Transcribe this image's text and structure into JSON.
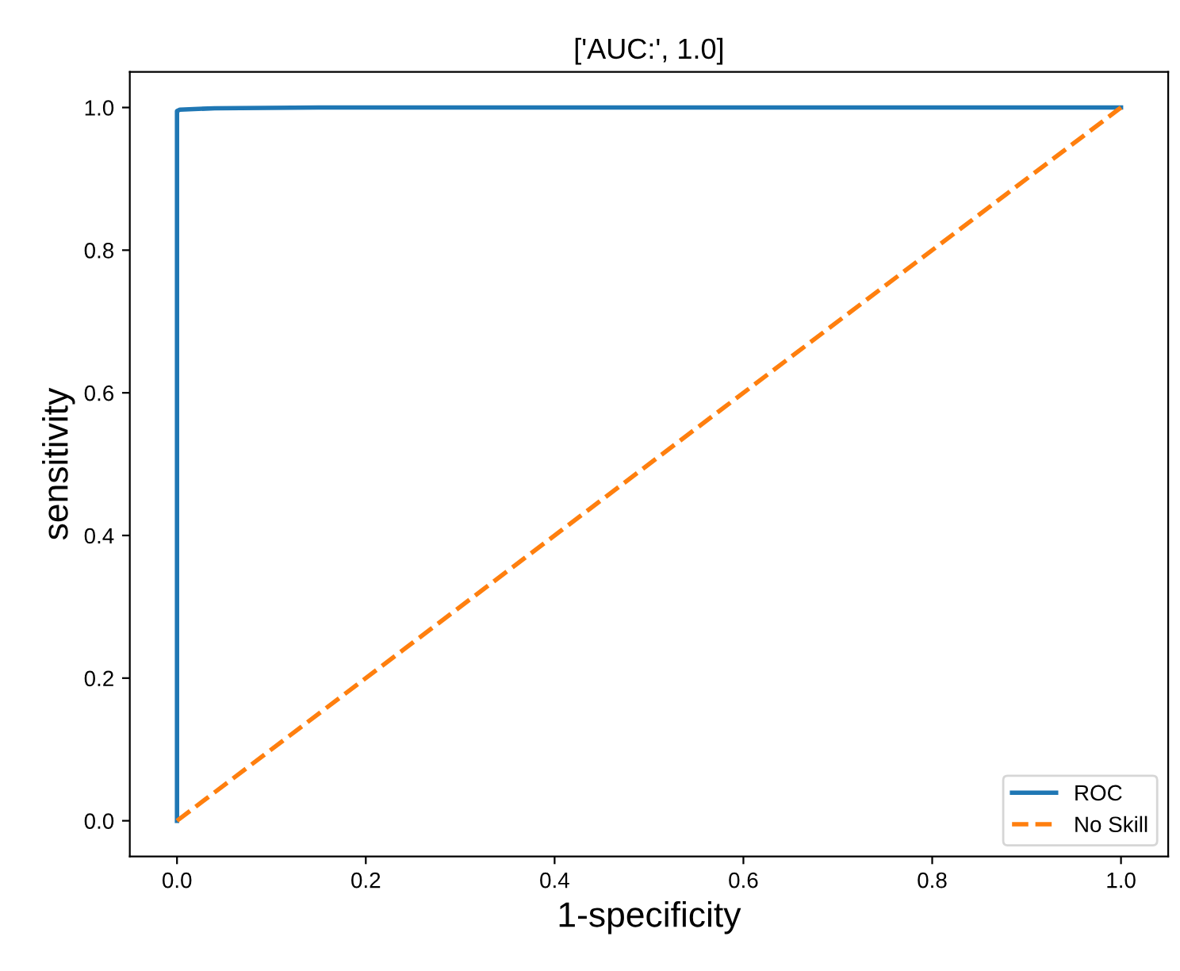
{
  "chart_data": {
    "type": "line",
    "title": "['AUC:', 1.0]",
    "xlabel": "1-specificity",
    "ylabel": "sensitivity",
    "series": [
      {
        "name": "ROC",
        "color": "#1f77b4",
        "x": [
          0,
          0,
          0.003,
          0.04,
          0.15,
          1
        ],
        "values": [
          0,
          0.995,
          0.997,
          0.999,
          1,
          1
        ],
        "line_style": "solid"
      },
      {
        "name": "No Skill",
        "color": "#ff7f0e",
        "x": [
          0,
          1
        ],
        "values": [
          0,
          1
        ],
        "line_style": "dashed"
      }
    ],
    "xlim": [
      -0.05,
      1.05
    ],
    "ylim": [
      -0.05,
      1.05
    ],
    "xticks": [
      {
        "value": 0,
        "label": "0.0"
      },
      {
        "value": 0.2,
        "label": "0.2"
      },
      {
        "value": 0.4,
        "label": "0.4"
      },
      {
        "value": 0.6,
        "label": "0.6"
      },
      {
        "value": 0.8,
        "label": "0.8"
      },
      {
        "value": 1,
        "label": "1.0"
      }
    ],
    "yticks": [
      {
        "value": 0,
        "label": "0.0"
      },
      {
        "value": 0.2,
        "label": "0.2"
      },
      {
        "value": 0.4,
        "label": "0.4"
      },
      {
        "value": 0.6,
        "label": "0.6"
      },
      {
        "value": 0.8,
        "label": "0.8"
      },
      {
        "value": 1,
        "label": "1.0"
      }
    ],
    "legend": "bottom right",
    "grid": false,
    "marker": "none"
  }
}
